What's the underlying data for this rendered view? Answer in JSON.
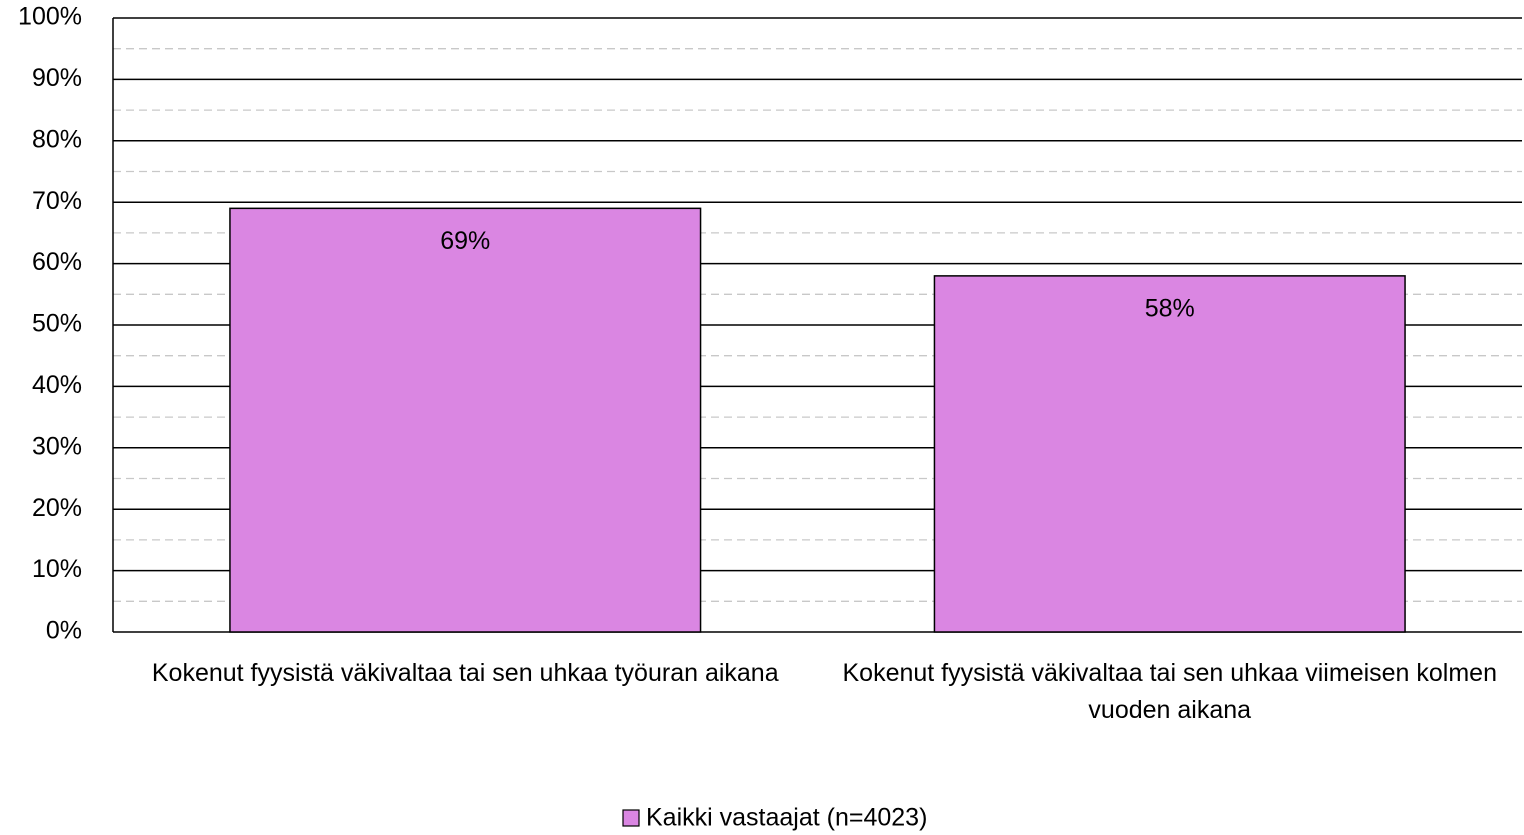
{
  "chart_data": {
    "type": "bar",
    "categories": [
      "Kokenut fyysistä väkivaltaa tai sen uhkaa työuran aikana",
      "Kokenut fyysistä väkivaltaa tai sen uhkaa viimeisen kolmen vuoden aikana"
    ],
    "series": [
      {
        "name": "Kaikki vastaajat (n=4023)",
        "color": "#da86e2",
        "values": [
          69,
          58
        ],
        "value_labels": [
          "69%",
          "58%"
        ]
      }
    ],
    "ylim": [
      0,
      100
    ],
    "yticks": [
      {
        "value": 0,
        "label": "0%"
      },
      {
        "value": 10,
        "label": "10%"
      },
      {
        "value": 20,
        "label": "20%"
      },
      {
        "value": 30,
        "label": "30%"
      },
      {
        "value": 40,
        "label": "40%"
      },
      {
        "value": 50,
        "label": "50%"
      },
      {
        "value": 60,
        "label": "60%"
      },
      {
        "value": 70,
        "label": "70%"
      },
      {
        "value": 80,
        "label": "80%"
      },
      {
        "value": 90,
        "label": "90%"
      },
      {
        "value": 100,
        "label": "100%"
      }
    ],
    "yminor_ticks": [
      5,
      15,
      25,
      35,
      45,
      55,
      65,
      75,
      85,
      95
    ],
    "grid": true,
    "legend": "bottom"
  }
}
